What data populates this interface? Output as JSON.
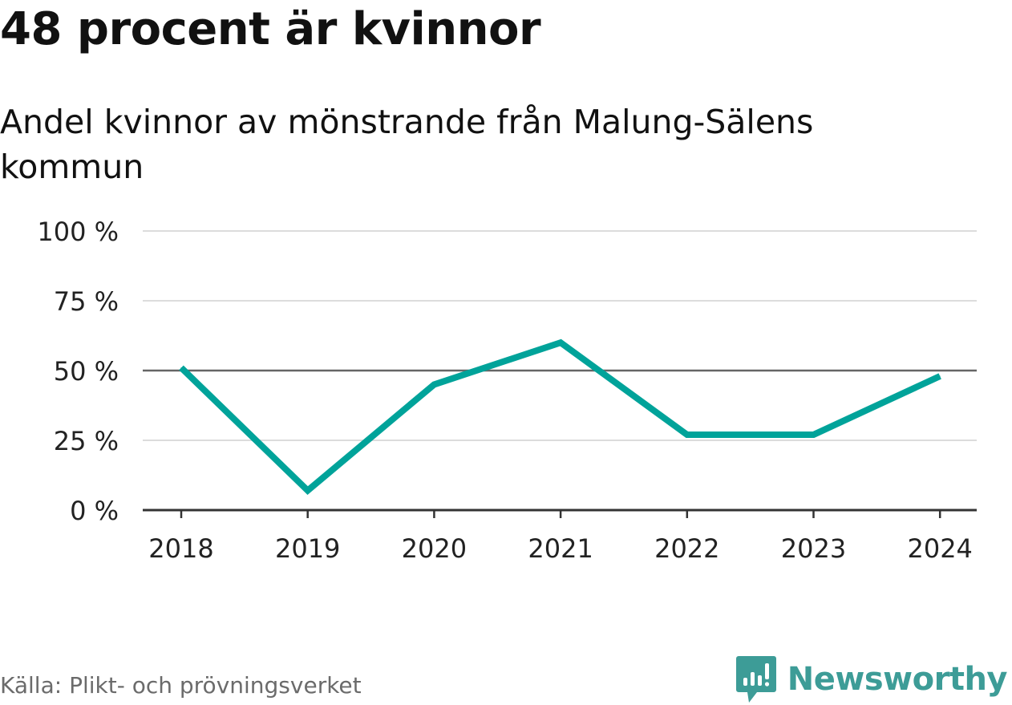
{
  "colors": {
    "line": "#00a39a",
    "brand": "#3d9c97",
    "grid": "#dcdcdc",
    "reference": "#666666",
    "axis": "#333333",
    "tick_text": "#222222"
  },
  "chart_data": {
    "type": "line",
    "title": "48 procent är kvinnor",
    "subtitle": "Andel kvinnor av mönstrande från Malung-Sälens kommun",
    "xlabel": "",
    "ylabel": "",
    "categories": [
      "2018",
      "2019",
      "2020",
      "2021",
      "2022",
      "2023",
      "2024"
    ],
    "series": [
      {
        "name": "Andel kvinnor",
        "values": [
          51,
          7,
          45,
          60,
          27,
          27,
          48
        ]
      }
    ],
    "ylim": [
      0,
      100
    ],
    "yticks": [
      0,
      25,
      50,
      75,
      100
    ],
    "ytick_labels": [
      "0 %",
      "25 %",
      "50 %",
      "75 %",
      "100 %"
    ],
    "reference_line": 50,
    "grid": true,
    "legend": "none"
  },
  "footer": {
    "source": "Källa: Plikt- och prövningsverket",
    "brand_name": "Newsworthy",
    "brand_icon": "newsworthy-logo-icon"
  }
}
